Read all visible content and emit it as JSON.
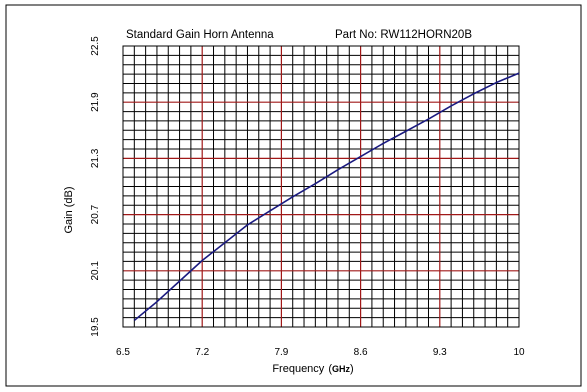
{
  "chart_data": {
    "type": "line",
    "title": "Standard Gain Horn Antenna",
    "subtitle": "Part No: RW112HORN20B",
    "xlabel": "Frequency",
    "xlabel_unit": "GHz",
    "xlabel_paren_open": "(",
    "xlabel_paren_close": ")",
    "ylabel": "Gain (dB)",
    "xlim": [
      6.5,
      10
    ],
    "ylim": [
      19.5,
      22.5
    ],
    "x_ticks": [
      "6.5",
      "7.2",
      "7.9",
      "8.6",
      "9.3",
      "10"
    ],
    "y_ticks": [
      "19.5",
      "20.1",
      "20.7",
      "21.3",
      "21.9",
      "22.5"
    ],
    "grid": true,
    "line_color": "#1a1a80",
    "major_grid_color": "#a01818",
    "minor_grid_color": "#000000",
    "series": [
      {
        "x": [
          6.6,
          6.8,
          7.0,
          7.2,
          7.4,
          7.6,
          7.8,
          8.0,
          8.2,
          8.4,
          8.6,
          8.8,
          9.0,
          9.2,
          9.4,
          9.6,
          9.8,
          10.0
        ],
        "values": [
          19.57,
          19.77,
          19.99,
          20.21,
          20.4,
          20.59,
          20.74,
          20.89,
          21.03,
          21.18,
          21.32,
          21.46,
          21.59,
          21.72,
          21.86,
          21.99,
          22.11,
          22.21
        ]
      }
    ]
  }
}
